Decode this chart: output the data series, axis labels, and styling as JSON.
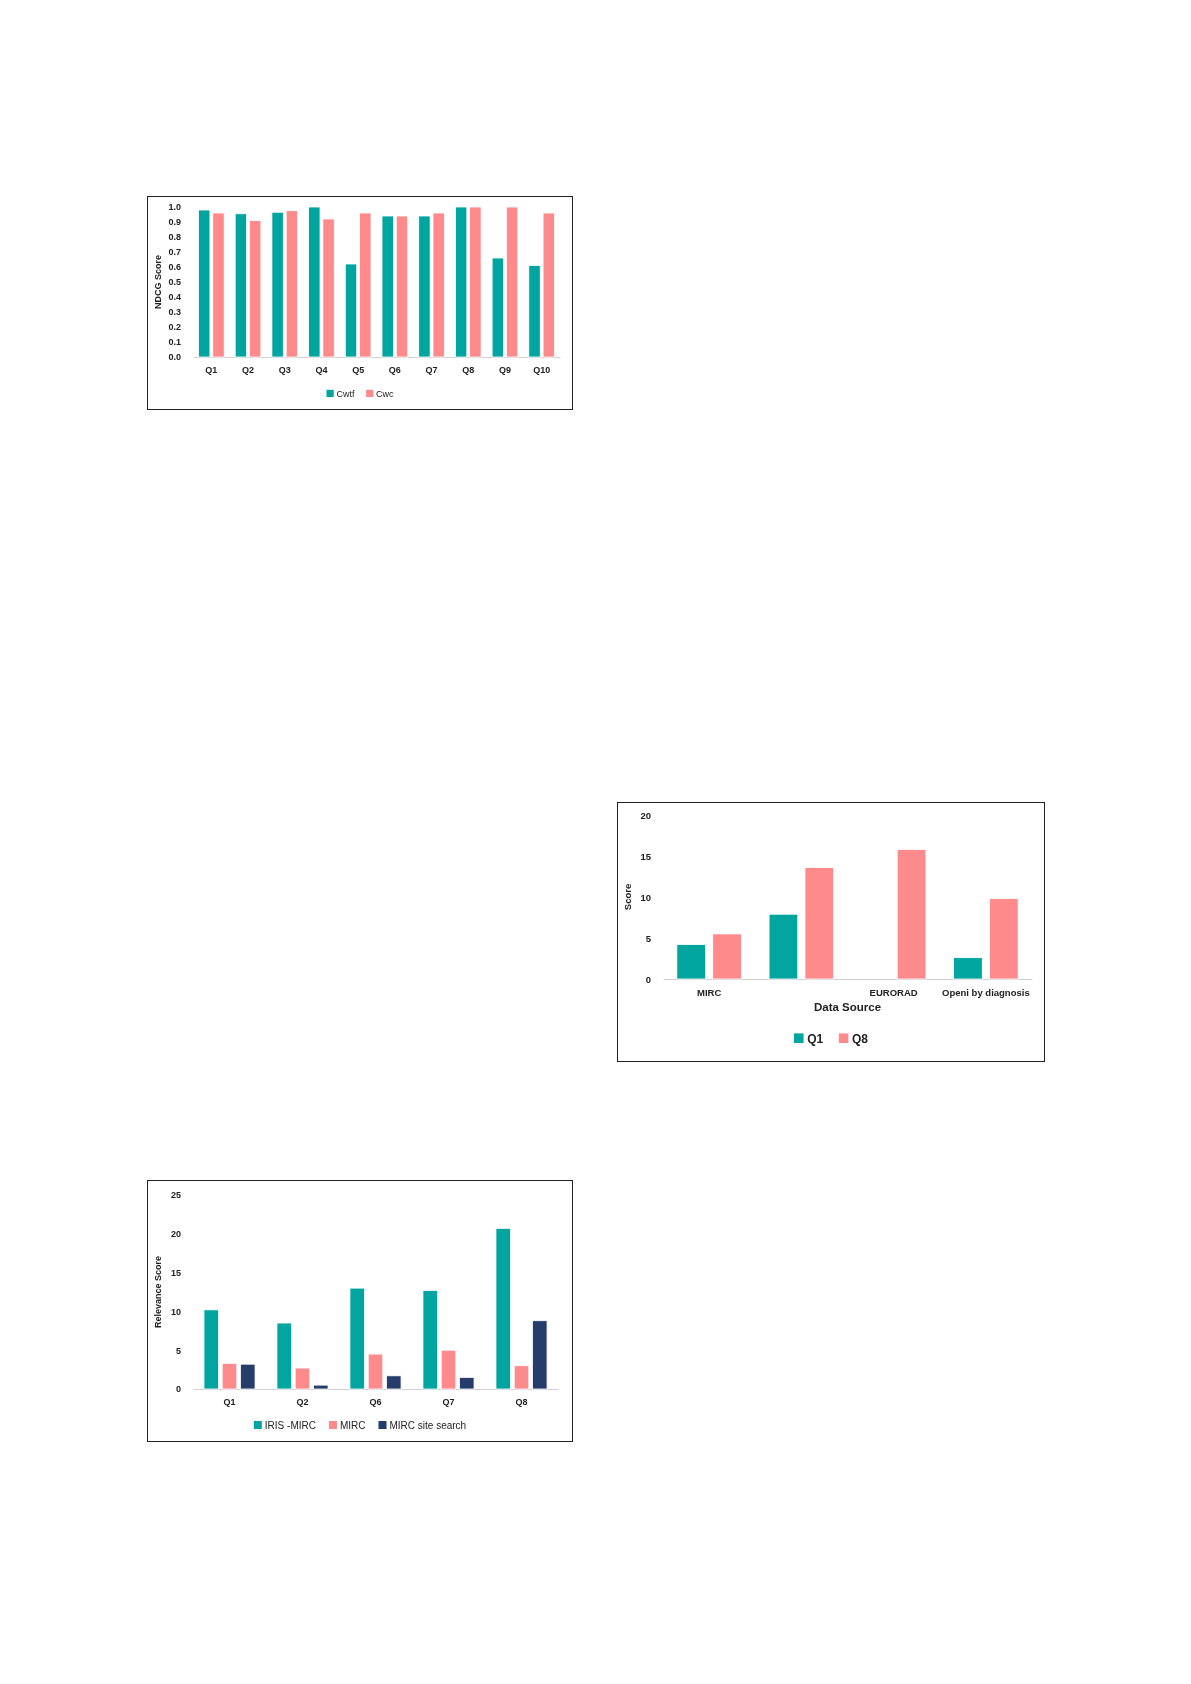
{
  "chart_data": [
    {
      "type": "bar",
      "ylabel": "NDCG Score",
      "categories": [
        "Q1",
        "Q2",
        "Q3",
        "Q4",
        "Q5",
        "Q6",
        "Q7",
        "Q8",
        "Q9",
        "Q10"
      ],
      "series": [
        {
          "name": "Cwtf",
          "color": "#00a5a0",
          "values": [
            0.98,
            0.955,
            0.965,
            1.0,
            0.62,
            0.94,
            0.94,
            1.0,
            0.66,
            0.61
          ]
        },
        {
          "name": "Cwc",
          "color": "#ff8a8c",
          "values": [
            0.96,
            0.91,
            0.975,
            0.92,
            0.96,
            0.94,
            0.96,
            1.0,
            1.0,
            0.96
          ]
        }
      ],
      "ylim": [
        0,
        1
      ],
      "yticks": [
        {
          "value": 0,
          "label": "0.0"
        },
        {
          "value": 0.1,
          "label": "0.1"
        },
        {
          "value": 0.2,
          "label": "0.2"
        },
        {
          "value": 0.3,
          "label": "0.3"
        },
        {
          "value": 0.4,
          "label": "0.4"
        },
        {
          "value": 0.5,
          "label": "0.5"
        },
        {
          "value": 0.6,
          "label": "0.6"
        },
        {
          "value": 0.7,
          "label": "0.7"
        },
        {
          "value": 0.8,
          "label": "0.8"
        },
        {
          "value": 0.9,
          "label": "0.9"
        },
        {
          "value": 1,
          "label": "1.0"
        }
      ],
      "grid": false,
      "legend": "bottom"
    },
    {
      "type": "bar",
      "xlabel": "Data Source",
      "ylabel": "Score",
      "categories": [
        "MIRC",
        null,
        "EURORAD",
        "Openi by diagnosis"
      ],
      "series": [
        {
          "name": "Q1",
          "color": "#00a5a0",
          "values": [
            4.2,
            7.9,
            0,
            2.6
          ]
        },
        {
          "name": "Q8",
          "color": "#ff8a8c",
          "values": [
            5.5,
            13.6,
            15.8,
            9.8
          ]
        }
      ],
      "ylim": [
        0,
        20
      ],
      "yticks": [
        0,
        5,
        10,
        15,
        20
      ],
      "grid": false,
      "legend": "bottom"
    },
    {
      "type": "bar",
      "ylabel": "Relevance Score",
      "categories": [
        "Q1",
        "Q2",
        "Q6",
        "Q7",
        "Q8"
      ],
      "series": [
        {
          "name": "IRIS -MIRC",
          "color": "#00a5a0",
          "values": [
            10.2,
            8.5,
            13.0,
            12.7,
            20.7
          ]
        },
        {
          "name": "MIRC",
          "color": "#ff8a8c",
          "values": [
            3.3,
            2.7,
            4.5,
            5.0,
            3.0
          ]
        },
        {
          "name": "MIRC site search",
          "color": "#263c6a",
          "values": [
            3.2,
            0.5,
            1.7,
            1.5,
            8.8
          ]
        }
      ],
      "ylim": [
        0,
        25
      ],
      "yticks": [
        0,
        5,
        10,
        15,
        20,
        25
      ],
      "grid": false,
      "legend": "bottom"
    }
  ]
}
